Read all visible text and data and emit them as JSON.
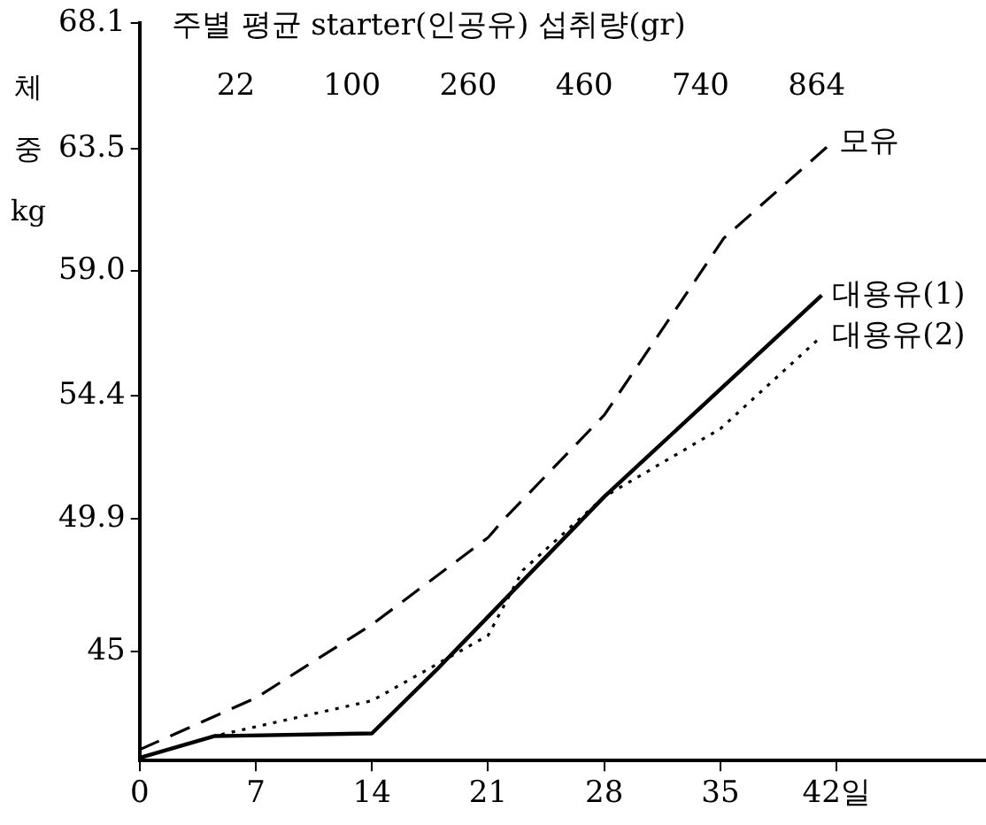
{
  "chart_data": {
    "type": "line",
    "ylabel": "체중 kg",
    "annotations": [
      "주별 평균 starter(인공유) 섭취량(gr)",
      "22",
      "100",
      "260",
      "460",
      "740",
      "864"
    ],
    "xlim": [
      0,
      51
    ],
    "xticks": [
      0,
      7,
      14,
      21,
      28,
      35,
      {
        "value": 42,
        "label": "42일"
      }
    ],
    "ylim": [
      41,
      68.1
    ],
    "yticks": [
      45,
      49.9,
      54.4,
      {
        "value": 59,
        "label": "59.0"
      },
      63.5,
      68.1
    ],
    "grid": false,
    "legend": false,
    "marker": "none",
    "series": [
      {
        "name": "모유",
        "color": "#000000",
        "line_style": "dashed",
        "x": [
          0,
          7,
          14,
          21,
          22,
          28,
          35.2,
          41.5
        ],
        "values": [
          41.4,
          43.3,
          46.0,
          49.2,
          49.9,
          53.7,
          60.2,
          63.6
        ]
      },
      {
        "name": "대용유(1)",
        "color": "#000000",
        "line_style": "solid",
        "x": [
          0,
          4.5,
          14,
          18,
          28,
          41.1
        ],
        "values": [
          41.1,
          41.9,
          42.0,
          44.4,
          50.7,
          58.1
        ]
      },
      {
        "name": "대용유(2)",
        "color": "#000000",
        "line_style": "dotted",
        "x": [
          0,
          4.5,
          14,
          21,
          23.1,
          28,
          35,
          41.1
        ],
        "values": [
          41.1,
          41.9,
          43.2,
          45.6,
          48.0,
          50.7,
          53.2,
          56.6
        ]
      }
    ]
  }
}
